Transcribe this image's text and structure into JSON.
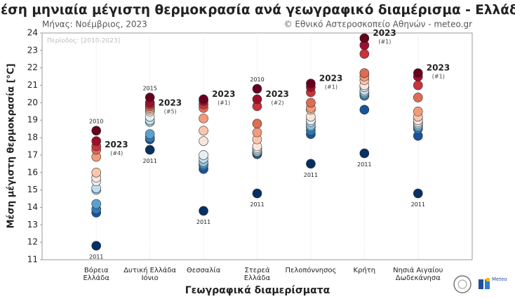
{
  "chart_data": {
    "type": "strip",
    "title": "Μέση μηνιαία μέγιστη θερμοκρασία ανά γεωγραφικό διαμέρισμα - Ελλάδα",
    "subtitle": "Μήνας: Νοέμβριος, 2023",
    "source": "© Εθνικό Αστεροσκοπείο Αθηνών - meteo.gr",
    "note": "Περίοδος: [2010-2023]",
    "x_label": "Γεωγραφικά διαμερίσματα",
    "y_label": "Μέση μέγιστη θερμοκρασία [°C]",
    "logo_text": "Meteo",
    "ylim": [
      11,
      24
    ],
    "yticks": [
      11,
      12,
      13,
      14,
      15,
      16,
      17,
      18,
      19,
      20,
      21,
      22,
      23,
      24
    ],
    "grid": true,
    "colors": [
      "#67001f",
      "#9e0e2c",
      "#c7343a",
      "#de6b55",
      "#f09c7b",
      "#f8c6ae",
      "#f9e5dc",
      "#e6eff4",
      "#c2dced",
      "#91c3df",
      "#5aa1cd",
      "#3179b5",
      "#18549a",
      "#053061"
    ],
    "categories": [
      [
        "Βόρεια",
        "Ελλάδα"
      ],
      [
        "Δυτική Ελλάδα",
        "Ιόνιο"
      ],
      [
        "Θεσσαλία"
      ],
      [
        "Στερεά",
        "Ελλάδα"
      ],
      [
        "Πελοπόννησος"
      ],
      [
        "Κρήτη"
      ],
      [
        "Νησιά Αιγαίου",
        "Δωδεκάνησα"
      ]
    ],
    "groups": [
      {
        "values": [
          18.4,
          17.8,
          17.5,
          17.3,
          16.9,
          16.0,
          15.7,
          15.5,
          15.1,
          15.0,
          14.2,
          13.9,
          13.7,
          11.8
        ],
        "point_labels": [
          "2010",
          null,
          null,
          "2023",
          null,
          null,
          null,
          null,
          null,
          null,
          null,
          null,
          null,
          "2011"
        ],
        "rank_labels": [
          null,
          null,
          null,
          "(#4)",
          null,
          null,
          null,
          null,
          null,
          null,
          null,
          null,
          null,
          null
        ]
      },
      {
        "values": [
          20.3,
          20.0,
          19.9,
          19.8,
          19.7,
          19.6,
          19.5,
          19.2,
          19.0,
          18.9,
          18.2,
          18.0,
          17.9,
          17.3
        ],
        "point_labels": [
          "2015",
          null,
          null,
          null,
          "2023",
          null,
          null,
          null,
          null,
          null,
          null,
          null,
          null,
          "2011"
        ],
        "rank_labels": [
          null,
          null,
          null,
          null,
          "(#5)",
          null,
          null,
          null,
          null,
          null,
          null,
          null,
          null,
          null
        ]
      },
      {
        "values": [
          20.2,
          20.1,
          19.9,
          19.7,
          19.1,
          18.4,
          17.8,
          17.0,
          16.8,
          16.6,
          16.5,
          16.4,
          16.2,
          13.8
        ],
        "point_labels": [
          "2023",
          null,
          null,
          null,
          null,
          null,
          null,
          null,
          null,
          null,
          null,
          null,
          null,
          "2011"
        ],
        "rank_labels": [
          "(#1)",
          null,
          null,
          null,
          null,
          null,
          null,
          null,
          null,
          null,
          null,
          null,
          null,
          null
        ]
      },
      {
        "values": [
          20.8,
          20.2,
          19.8,
          18.8,
          18.3,
          17.9,
          17.5,
          17.4,
          17.3,
          17.2,
          17.15,
          17.1,
          17.05,
          14.8
        ],
        "point_labels": [
          "2010",
          "2023",
          null,
          null,
          null,
          null,
          null,
          null,
          null,
          null,
          null,
          null,
          null,
          "2011"
        ],
        "rank_labels": [
          null,
          "(#2)",
          null,
          null,
          null,
          null,
          null,
          null,
          null,
          null,
          null,
          null,
          null,
          null
        ]
      },
      {
        "values": [
          21.1,
          20.9,
          20.6,
          20.0,
          19.7,
          19.6,
          19.2,
          19.0,
          18.9,
          18.7,
          18.6,
          18.4,
          18.2,
          16.5
        ],
        "point_labels": [
          "2023",
          null,
          null,
          null,
          null,
          null,
          null,
          null,
          null,
          null,
          null,
          null,
          null,
          "2011"
        ],
        "rank_labels": [
          "(#1)",
          null,
          null,
          null,
          null,
          null,
          null,
          null,
          null,
          null,
          null,
          null,
          null,
          null
        ]
      },
      {
        "values": [
          23.7,
          23.3,
          22.8,
          21.7,
          21.5,
          21.3,
          21.0,
          20.9,
          20.7,
          20.6,
          20.5,
          20.4,
          19.6,
          17.1
        ],
        "point_labels": [
          "2023",
          null,
          null,
          null,
          null,
          null,
          null,
          null,
          null,
          null,
          null,
          null,
          null,
          "2011"
        ],
        "rank_labels": [
          "(#1)",
          null,
          null,
          null,
          null,
          null,
          null,
          null,
          null,
          null,
          null,
          null,
          null,
          null
        ]
      },
      {
        "values": [
          21.7,
          21.5,
          21.0,
          20.3,
          19.5,
          19.2,
          19.0,
          18.9,
          18.8,
          18.7,
          18.6,
          18.5,
          18.1,
          14.8
        ],
        "point_labels": [
          "2023",
          null,
          null,
          null,
          null,
          null,
          null,
          null,
          null,
          null,
          null,
          null,
          null,
          "2011"
        ],
        "rank_labels": [
          "(#1)",
          null,
          null,
          null,
          null,
          null,
          null,
          null,
          null,
          null,
          null,
          null,
          null,
          null
        ]
      }
    ]
  }
}
